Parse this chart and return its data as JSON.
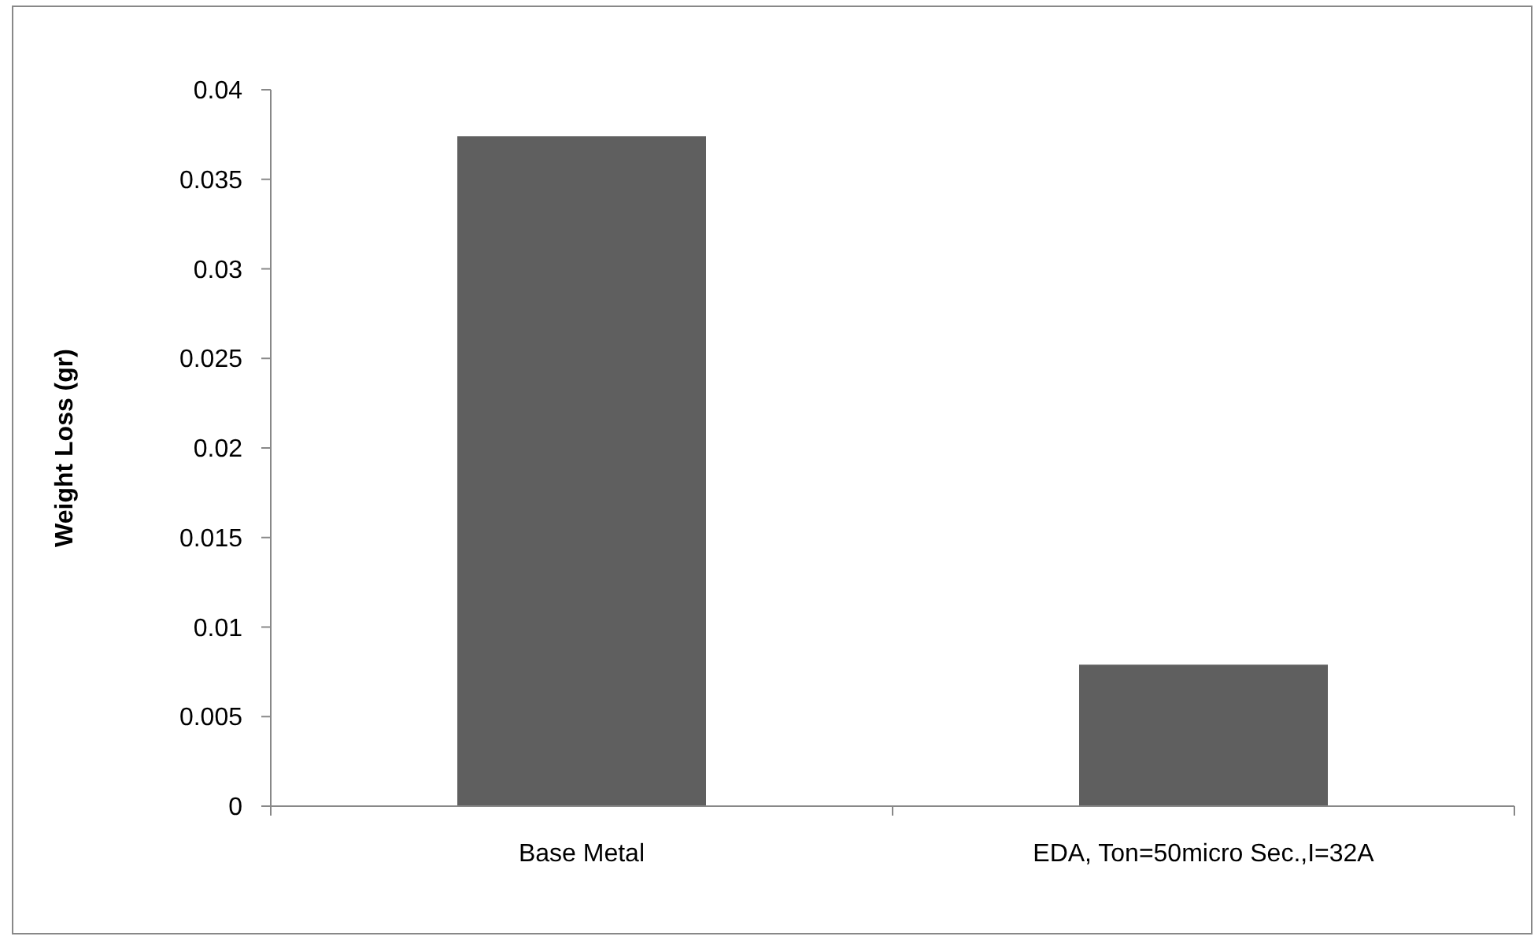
{
  "chart_data": {
    "type": "bar",
    "ylabel": "Weight Loss (gr)",
    "categories": [
      "Base Metal",
      "EDA, Ton=50micro Sec.,I=32A"
    ],
    "values": [
      0.0374,
      0.0079
    ],
    "color": "#5f5f5f",
    "ylim": [
      0,
      0.04
    ],
    "yticks": [
      0,
      0.005,
      0.01,
      0.015,
      0.02,
      0.025,
      0.03,
      0.035,
      0.04
    ],
    "grid": false
  }
}
